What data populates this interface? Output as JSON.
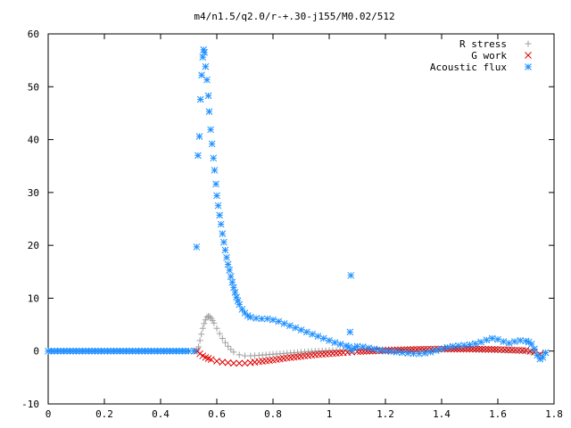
{
  "chart_data": {
    "type": "scatter",
    "title": "m4/n1.5/q2.0/r-+.30-j155/M0.02/512",
    "xlabel": "",
    "ylabel": "",
    "xlim": [
      0,
      1.8
    ],
    "ylim": [
      -10,
      60
    ],
    "x_ticks": [
      "0",
      "0.2",
      "0.4",
      "0.6",
      "0.8",
      "1",
      "1.2",
      "1.4",
      "1.6",
      "1.8"
    ],
    "y_ticks": [
      "-10",
      "0",
      "10",
      "20",
      "30",
      "40",
      "50",
      "60"
    ],
    "legend_position": "top-right",
    "series": [
      {
        "name": "R stress",
        "marker": "+",
        "color": "#a0a0a0",
        "points": [
          [
            0.0,
            0.0
          ],
          [
            0.1,
            0.0
          ],
          [
            0.2,
            0.0
          ],
          [
            0.3,
            0.0
          ],
          [
            0.4,
            0.0
          ],
          [
            0.5,
            0.0
          ],
          [
            0.53,
            0.0
          ],
          [
            0.535,
            0.8
          ],
          [
            0.54,
            2.0
          ],
          [
            0.545,
            3.2
          ],
          [
            0.55,
            4.3
          ],
          [
            0.555,
            5.2
          ],
          [
            0.56,
            5.9
          ],
          [
            0.565,
            6.4
          ],
          [
            0.57,
            6.6
          ],
          [
            0.575,
            6.5
          ],
          [
            0.58,
            6.2
          ],
          [
            0.585,
            5.8
          ],
          [
            0.59,
            5.3
          ],
          [
            0.6,
            4.3
          ],
          [
            0.61,
            3.3
          ],
          [
            0.62,
            2.4
          ],
          [
            0.63,
            1.6
          ],
          [
            0.64,
            0.9
          ],
          [
            0.65,
            0.3
          ],
          [
            0.66,
            -0.2
          ],
          [
            0.68,
            -0.7
          ],
          [
            0.7,
            -0.9
          ],
          [
            0.72,
            -0.9
          ],
          [
            0.75,
            -0.8
          ],
          [
            0.8,
            -0.6
          ],
          [
            0.85,
            -0.4
          ],
          [
            0.9,
            -0.2
          ],
          [
            0.95,
            0.0
          ],
          [
            1.0,
            0.1
          ],
          [
            1.05,
            0.1
          ],
          [
            1.08,
            0.1
          ],
          [
            1.1,
            0.2
          ],
          [
            1.2,
            0.3
          ],
          [
            1.3,
            0.3
          ],
          [
            1.4,
            0.3
          ],
          [
            1.5,
            0.3
          ],
          [
            1.6,
            0.2
          ],
          [
            1.65,
            0.1
          ],
          [
            1.7,
            0.0
          ],
          [
            1.73,
            -0.3
          ],
          [
            1.75,
            -0.8
          ],
          [
            1.76,
            -0.5
          ]
        ]
      },
      {
        "name": "G work",
        "marker": "x",
        "color": "#e00000",
        "points": [
          [
            0.53,
            0.0
          ],
          [
            0.54,
            -0.5
          ],
          [
            0.55,
            -0.9
          ],
          [
            0.56,
            -1.2
          ],
          [
            0.57,
            -1.4
          ],
          [
            0.58,
            -1.6
          ],
          [
            0.6,
            -1.9
          ],
          [
            0.62,
            -2.1
          ],
          [
            0.64,
            -2.2
          ],
          [
            0.66,
            -2.3
          ],
          [
            0.68,
            -2.3
          ],
          [
            0.7,
            -2.3
          ],
          [
            0.72,
            -2.2
          ],
          [
            0.75,
            -2.0
          ],
          [
            0.8,
            -1.7
          ],
          [
            0.85,
            -1.3
          ],
          [
            0.9,
            -1.0
          ],
          [
            0.95,
            -0.7
          ],
          [
            1.0,
            -0.5
          ],
          [
            1.05,
            -0.3
          ],
          [
            1.08,
            -0.2
          ],
          [
            1.1,
            -0.1
          ],
          [
            1.2,
            0.1
          ],
          [
            1.3,
            0.3
          ],
          [
            1.4,
            0.4
          ],
          [
            1.5,
            0.4
          ],
          [
            1.6,
            0.3
          ],
          [
            1.65,
            0.2
          ],
          [
            1.7,
            0.1
          ],
          [
            1.73,
            -0.2
          ],
          [
            1.75,
            -0.6
          ]
        ]
      },
      {
        "name": "Acoustic flux",
        "marker": "*",
        "color": "#1e90ff",
        "points": [
          [
            0.0,
            0.0
          ],
          [
            0.1,
            0.0
          ],
          [
            0.2,
            0.0
          ],
          [
            0.3,
            0.0
          ],
          [
            0.4,
            0.0
          ],
          [
            0.5,
            0.0
          ],
          [
            0.52,
            0.0
          ],
          [
            0.528,
            19.7
          ],
          [
            0.533,
            37.0
          ],
          [
            0.538,
            40.6
          ],
          [
            0.542,
            47.6
          ],
          [
            0.546,
            52.2
          ],
          [
            0.55,
            55.6
          ],
          [
            0.553,
            57.0
          ],
          [
            0.556,
            56.5
          ],
          [
            0.56,
            53.8
          ],
          [
            0.565,
            51.3
          ],
          [
            0.57,
            48.3
          ],
          [
            0.573,
            45.3
          ],
          [
            0.578,
            41.9
          ],
          [
            0.583,
            39.2
          ],
          [
            0.588,
            36.5
          ],
          [
            0.592,
            34.2
          ],
          [
            0.597,
            31.6
          ],
          [
            0.6,
            29.4
          ],
          [
            0.605,
            27.5
          ],
          [
            0.61,
            25.7
          ],
          [
            0.615,
            24.0
          ],
          [
            0.62,
            22.2
          ],
          [
            0.625,
            20.6
          ],
          [
            0.63,
            19.1
          ],
          [
            0.635,
            17.7
          ],
          [
            0.64,
            16.4
          ],
          [
            0.645,
            15.3
          ],
          [
            0.65,
            14.1
          ],
          [
            0.655,
            13.0
          ],
          [
            0.66,
            12.0
          ],
          [
            0.665,
            11.1
          ],
          [
            0.67,
            10.2
          ],
          [
            0.675,
            9.5
          ],
          [
            0.68,
            8.8
          ],
          [
            0.69,
            7.9
          ],
          [
            0.7,
            7.2
          ],
          [
            0.71,
            6.7
          ],
          [
            0.72,
            6.4
          ],
          [
            0.74,
            6.2
          ],
          [
            0.76,
            6.1
          ],
          [
            0.78,
            6.1
          ],
          [
            0.8,
            5.9
          ],
          [
            0.82,
            5.6
          ],
          [
            0.84,
            5.2
          ],
          [
            0.86,
            4.8
          ],
          [
            0.88,
            4.4
          ],
          [
            0.9,
            4.0
          ],
          [
            0.92,
            3.6
          ],
          [
            0.94,
            3.2
          ],
          [
            0.96,
            2.8
          ],
          [
            0.98,
            2.4
          ],
          [
            1.0,
            2.0
          ],
          [
            1.02,
            1.6
          ],
          [
            1.04,
            1.3
          ],
          [
            1.06,
            1.0
          ],
          [
            1.07,
            0.8
          ],
          [
            1.074,
            3.6
          ],
          [
            1.077,
            14.3
          ],
          [
            1.08,
            0.2
          ],
          [
            1.09,
            0.6
          ],
          [
            1.1,
            0.9
          ],
          [
            1.12,
            0.8
          ],
          [
            1.14,
            0.6
          ],
          [
            1.16,
            0.4
          ],
          [
            1.18,
            0.2
          ],
          [
            1.2,
            0.0
          ],
          [
            1.22,
            -0.1
          ],
          [
            1.24,
            -0.2
          ],
          [
            1.26,
            -0.3
          ],
          [
            1.28,
            -0.4
          ],
          [
            1.3,
            -0.5
          ],
          [
            1.32,
            -0.5
          ],
          [
            1.34,
            -0.4
          ],
          [
            1.36,
            -0.2
          ],
          [
            1.38,
            0.1
          ],
          [
            1.4,
            0.4
          ],
          [
            1.42,
            0.7
          ],
          [
            1.44,
            0.9
          ],
          [
            1.46,
            1.0
          ],
          [
            1.48,
            1.1
          ],
          [
            1.5,
            1.2
          ],
          [
            1.52,
            1.4
          ],
          [
            1.54,
            1.7
          ],
          [
            1.56,
            2.1
          ],
          [
            1.58,
            2.4
          ],
          [
            1.6,
            2.2
          ],
          [
            1.62,
            1.8
          ],
          [
            1.64,
            1.5
          ],
          [
            1.66,
            1.8
          ],
          [
            1.68,
            2.0
          ],
          [
            1.7,
            1.9
          ],
          [
            1.71,
            1.7
          ],
          [
            1.72,
            1.3
          ],
          [
            1.73,
            0.4
          ],
          [
            1.74,
            -0.8
          ],
          [
            1.75,
            -1.5
          ],
          [
            1.76,
            -1.2
          ],
          [
            1.77,
            -0.3
          ]
        ]
      }
    ]
  }
}
